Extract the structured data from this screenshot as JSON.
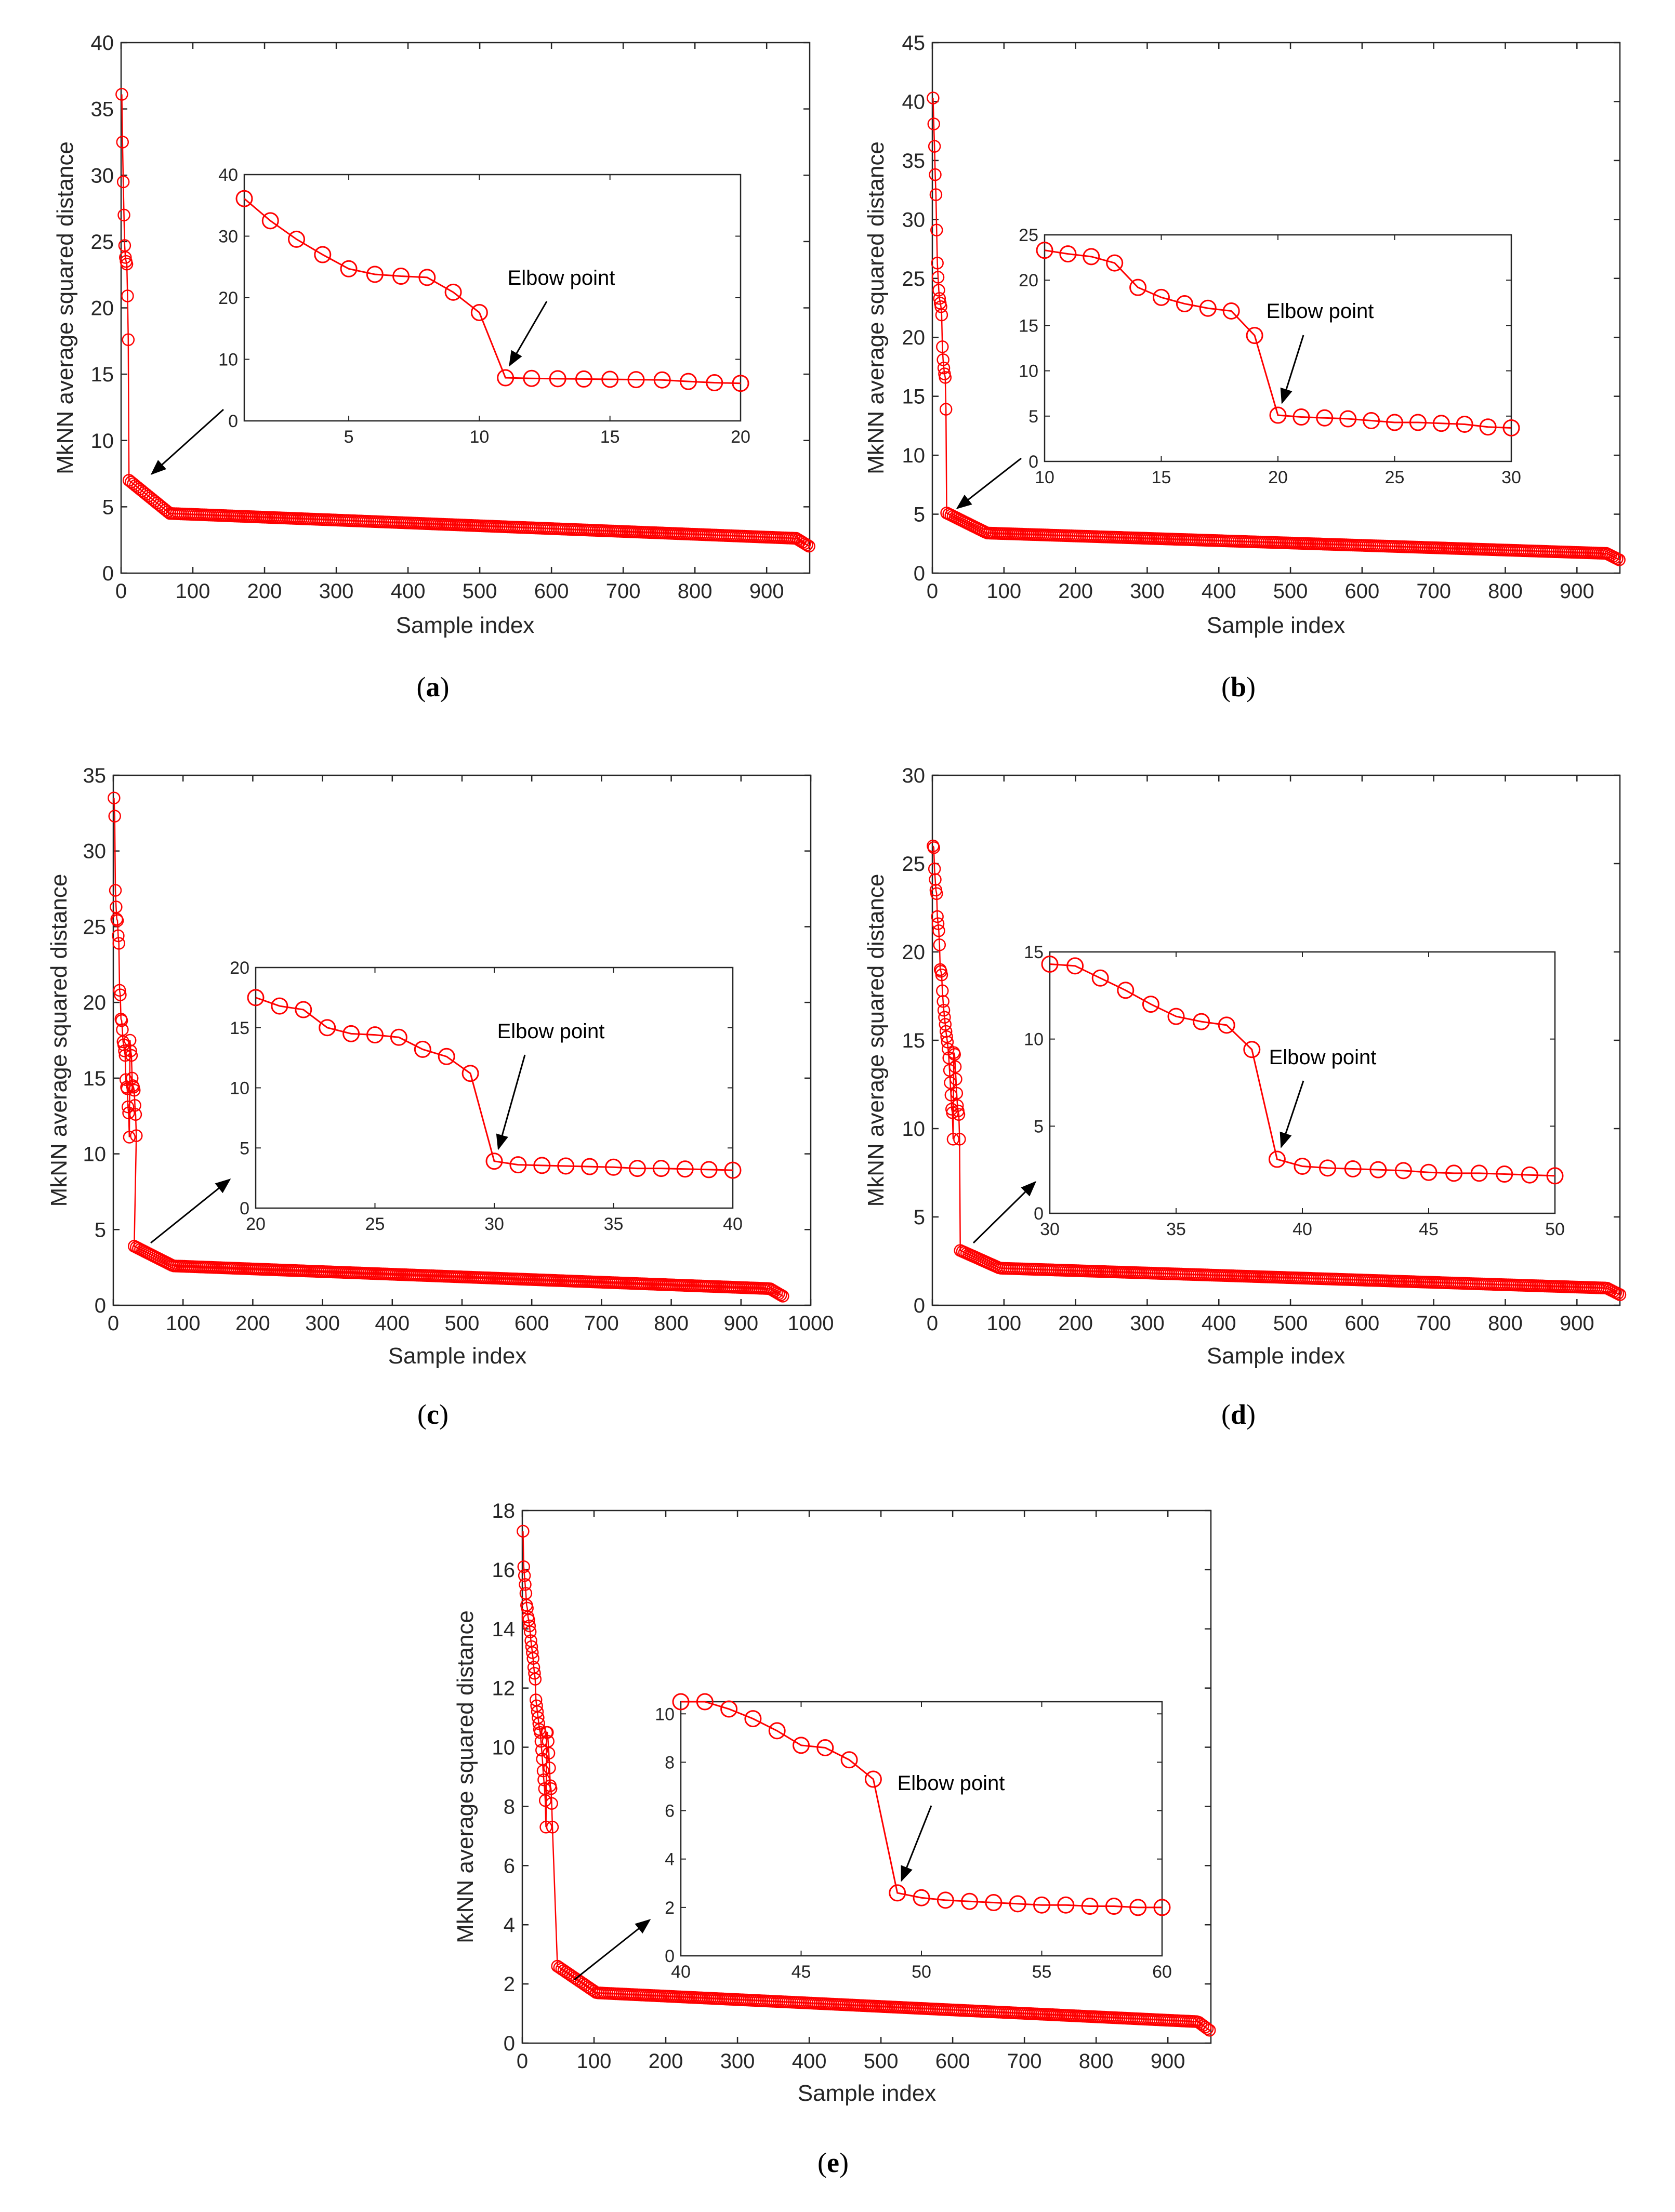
{
  "colors": {
    "series": "#ff0000",
    "axis": "#262626",
    "arrow": "#000000"
  },
  "chart_data": [
    {
      "type": "scatter",
      "caption": "(a)",
      "xlabel": "Sample index",
      "ylabel": "MkNN average squared distance",
      "xlim": [
        0,
        960
      ],
      "ylim": [
        0,
        40
      ],
      "xticks": [
        0,
        100,
        200,
        300,
        400,
        500,
        600,
        700,
        800,
        900
      ],
      "yticks": [
        0,
        5,
        10,
        15,
        20,
        25,
        30,
        35,
        40
      ],
      "head_values": [
        36.1,
        32.5,
        29.5,
        27.0,
        24.7,
        23.8,
        23.5,
        23.3,
        20.9,
        17.6
      ],
      "tail": {
        "start_index": 11,
        "end_index": 960,
        "start_value": 7.0,
        "end_value": 2.0,
        "knee_value": 4.5
      },
      "inset": {
        "xlim": [
          1,
          20
        ],
        "ylim": [
          0,
          40
        ],
        "xticks": [
          5,
          10,
          15,
          20
        ],
        "yticks": [
          0,
          10,
          20,
          30,
          40
        ],
        "x": [
          1,
          2,
          3,
          4,
          5,
          6,
          7,
          8,
          9,
          10,
          11,
          12,
          13,
          14,
          15,
          16,
          17,
          18,
          19,
          20
        ],
        "y": [
          36.1,
          32.5,
          29.5,
          27.0,
          24.7,
          23.8,
          23.5,
          23.3,
          20.9,
          17.6,
          7.0,
          6.9,
          6.85,
          6.8,
          6.75,
          6.7,
          6.65,
          6.4,
          6.2,
          6.1
        ],
        "elbow_index": 11,
        "annotation": "Elbow point"
      }
    },
    {
      "type": "scatter",
      "caption": "(b)",
      "xlabel": "Sample index",
      "ylabel": "MkNN average squared distance",
      "xlim": [
        0,
        960
      ],
      "ylim": [
        0,
        45
      ],
      "xticks": [
        0,
        100,
        200,
        300,
        400,
        500,
        600,
        700,
        800,
        900
      ],
      "yticks": [
        0,
        5,
        10,
        15,
        20,
        25,
        30,
        35,
        40,
        45
      ],
      "head_values": [
        40.3,
        38.1,
        36.2,
        33.8,
        32.1,
        29.1,
        26.3,
        25.1,
        24.0,
        23.3,
        22.9,
        22.6,
        21.9,
        19.2,
        18.1,
        17.4,
        16.9,
        16.6,
        13.9
      ],
      "tail": {
        "start_index": 20,
        "end_index": 960,
        "start_value": 5.1,
        "end_value": 1.1,
        "knee_value": 3.4
      },
      "inset": {
        "xlim": [
          10,
          30
        ],
        "ylim": [
          0,
          25
        ],
        "xticks": [
          10,
          15,
          20,
          25,
          30
        ],
        "yticks": [
          0,
          5,
          10,
          15,
          20,
          25
        ],
        "x": [
          10,
          11,
          12,
          13,
          14,
          15,
          16,
          17,
          18,
          19,
          20,
          21,
          22,
          23,
          24,
          25,
          26,
          27,
          28,
          29,
          30
        ],
        "y": [
          23.3,
          22.9,
          22.6,
          21.9,
          19.2,
          18.1,
          17.4,
          16.9,
          16.6,
          13.9,
          5.1,
          4.9,
          4.8,
          4.7,
          4.5,
          4.3,
          4.3,
          4.2,
          4.1,
          3.8,
          3.7
        ],
        "elbow_index": 20,
        "annotation": "Elbow point"
      }
    },
    {
      "type": "scatter",
      "caption": "(c)",
      "xlabel": "Sample index",
      "ylabel": "MkNN average squared distance",
      "xlim": [
        0,
        1000
      ],
      "ylim": [
        0,
        35
      ],
      "xticks": [
        0,
        100,
        200,
        300,
        400,
        500,
        600,
        700,
        800,
        900,
        1000
      ],
      "yticks": [
        0,
        5,
        10,
        15,
        20,
        25,
        30,
        35
      ],
      "head_values": [
        33.5,
        32.3,
        27.4,
        26.3,
        25.5,
        25.4,
        24.4,
        23.9,
        20.8,
        20.5,
        18.9,
        18.8,
        18.2,
        17.4,
        17.2,
        16.8,
        16.5,
        14.9,
        14.4,
        14.3,
        13.1,
        12.7,
        11.1,
        17.5,
        16.8,
        16.5,
        15.0,
        14.5,
        14.4,
        14.2,
        13.2,
        12.6,
        11.2
      ],
      "tail": {
        "start_index": 30,
        "end_index": 960,
        "start_value": 3.9,
        "end_value": 0.6,
        "knee_value": 2.6
      },
      "inset": {
        "xlim": [
          20,
          40
        ],
        "ylim": [
          0,
          20
        ],
        "xticks": [
          20,
          25,
          30,
          35,
          40
        ],
        "yticks": [
          0,
          5,
          10,
          15,
          20
        ],
        "x": [
          20,
          21,
          22,
          23,
          24,
          25,
          26,
          27,
          28,
          29,
          30,
          31,
          32,
          33,
          34,
          35,
          36,
          37,
          38,
          39,
          40
        ],
        "y": [
          17.5,
          16.8,
          16.5,
          15.0,
          14.5,
          14.4,
          14.2,
          13.2,
          12.6,
          11.2,
          3.9,
          3.6,
          3.55,
          3.5,
          3.45,
          3.4,
          3.3,
          3.3,
          3.25,
          3.2,
          3.15
        ],
        "elbow_index": 30,
        "annotation": "Elbow point"
      }
    },
    {
      "type": "scatter",
      "caption": "(d)",
      "xlabel": "Sample index",
      "ylabel": "MkNN average squared distance",
      "xlim": [
        0,
        960
      ],
      "ylim": [
        0,
        30
      ],
      "xticks": [
        0,
        100,
        200,
        300,
        400,
        500,
        600,
        700,
        800,
        900
      ],
      "yticks": [
        0,
        5,
        10,
        15,
        20,
        25,
        30
      ],
      "head_values": [
        26.0,
        25.9,
        24.7,
        24.1,
        23.5,
        23.3,
        22.0,
        21.6,
        21.2,
        20.4,
        19.0,
        18.9,
        18.7,
        17.8,
        17.2,
        16.7,
        16.3,
        15.9,
        15.5,
        15.2,
        14.9,
        14.5,
        14.0,
        13.3,
        12.6,
        11.9,
        11.1,
        10.9,
        9.4,
        14.3,
        14.2,
        13.5,
        12.8,
        12.0,
        11.3,
        11.0,
        10.8,
        9.4
      ],
      "tail": {
        "start_index": 39,
        "end_index": 960,
        "start_value": 3.1,
        "end_value": 0.6,
        "knee_value": 2.1
      },
      "inset": {
        "xlim": [
          30,
          50
        ],
        "ylim": [
          0,
          15
        ],
        "xticks": [
          30,
          35,
          40,
          45,
          50
        ],
        "yticks": [
          0,
          5,
          10,
          15
        ],
        "x": [
          30,
          31,
          32,
          33,
          34,
          35,
          36,
          37,
          38,
          39,
          40,
          41,
          42,
          43,
          44,
          45,
          46,
          47,
          48,
          49,
          50
        ],
        "y": [
          14.3,
          14.2,
          13.5,
          12.8,
          12.0,
          11.3,
          11.0,
          10.8,
          9.4,
          3.1,
          2.7,
          2.6,
          2.55,
          2.5,
          2.45,
          2.35,
          2.3,
          2.3,
          2.25,
          2.2,
          2.15
        ],
        "elbow_index": 39,
        "annotation": "Elbow point"
      }
    },
    {
      "type": "scatter",
      "caption": "(e)",
      "xlabel": "Sample index",
      "ylabel": "MkNN average squared distance",
      "xlim": [
        0,
        960
      ],
      "ylim": [
        0,
        18
      ],
      "xticks": [
        0,
        100,
        200,
        300,
        400,
        500,
        600,
        700,
        800,
        900
      ],
      "yticks": [
        0,
        2,
        4,
        6,
        8,
        10,
        12,
        14,
        16,
        18
      ],
      "head_values": [
        17.3,
        16.1,
        15.8,
        15.5,
        15.2,
        14.8,
        14.7,
        14.4,
        14.3,
        14.1,
        13.9,
        13.6,
        13.4,
        13.2,
        13.0,
        12.7,
        12.5,
        12.3,
        11.6,
        11.4,
        11.2,
        11.0,
        10.8,
        10.6,
        10.5,
        10.2,
        9.9,
        9.6,
        9.2,
        8.9,
        8.6,
        8.2,
        7.3,
        10.5,
        10.5,
        10.2,
        9.8,
        9.3,
        8.7,
        8.6,
        8.1,
        7.3
      ],
      "tail": {
        "start_index": 49,
        "end_index": 960,
        "start_value": 2.6,
        "end_value": 0.4,
        "knee_value": 1.7
      },
      "inset": {
        "xlim": [
          40,
          60
        ],
        "ylim": [
          0,
          10.5
        ],
        "xticks": [
          40,
          45,
          50,
          55,
          60
        ],
        "yticks": [
          0,
          2,
          4,
          6,
          8,
          10
        ],
        "x": [
          40,
          41,
          42,
          43,
          44,
          45,
          46,
          47,
          48,
          49,
          50,
          51,
          52,
          53,
          54,
          55,
          56,
          57,
          58,
          59,
          60
        ],
        "y": [
          10.5,
          10.5,
          10.2,
          9.8,
          9.3,
          8.7,
          8.6,
          8.1,
          7.3,
          2.6,
          2.4,
          2.3,
          2.25,
          2.2,
          2.15,
          2.1,
          2.1,
          2.05,
          2.05,
          2.0,
          2.0
        ],
        "elbow_index": 49,
        "annotation": "Elbow point"
      }
    }
  ]
}
